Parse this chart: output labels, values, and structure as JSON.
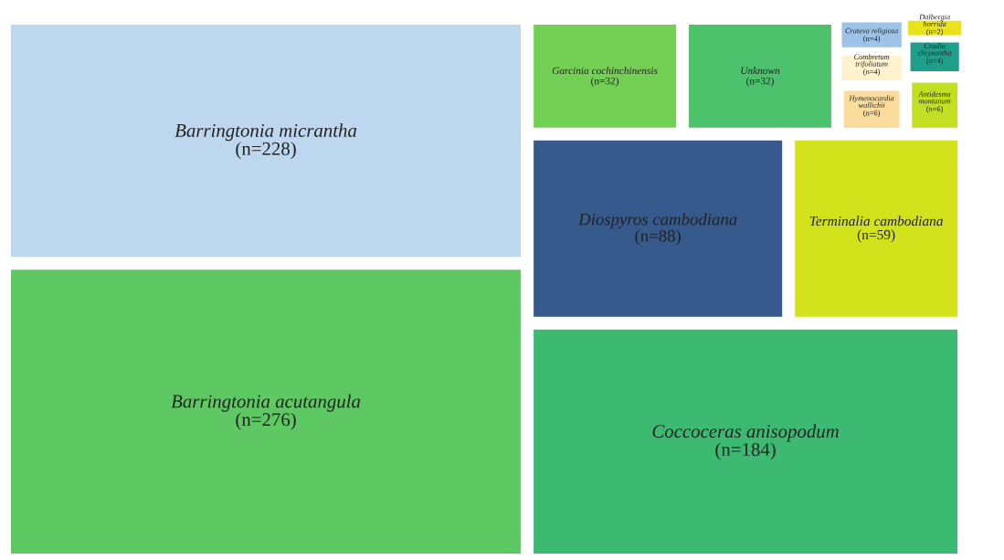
{
  "chart_data": {
    "type": "other",
    "categories": [
      "Barringtonia acutangula",
      "Barringtonia micrantha",
      "Coccoceras anisopodum",
      "Diospyros cambodiana",
      "Terminalia cambodiana",
      "Garcinia cochinchinensis",
      "Unknown",
      "Hymenocardia wallichii",
      "Antidesma montanum",
      "Crateva religiosa",
      "Combretum trifoliatum",
      "Crudia chrysantha",
      "Dalbergia horrida"
    ],
    "values": [
      276,
      228,
      184,
      88,
      59,
      32,
      32,
      6,
      6,
      4,
      4,
      4,
      2
    ],
    "value_labels": [
      "(n=276)",
      "(n=228)",
      "(n=184)",
      "(n=88)",
      "(n=59)",
      "(n=32)",
      "(n=32)",
      "(n=6)",
      "(n=6)",
      "(n=4)",
      "(n=4)",
      "(n=4)",
      "(n=2)"
    ],
    "colors": [
      "#5ec962",
      "#bdd7ee",
      "#3dba72",
      "#375a8c",
      "#d2e21b",
      "#74d055",
      "#4cc26c",
      "#fbdc9c",
      "#c2df23",
      "#9dc3e6",
      "#fff2cc",
      "#1f9e89",
      "#e8e419"
    ]
  }
}
